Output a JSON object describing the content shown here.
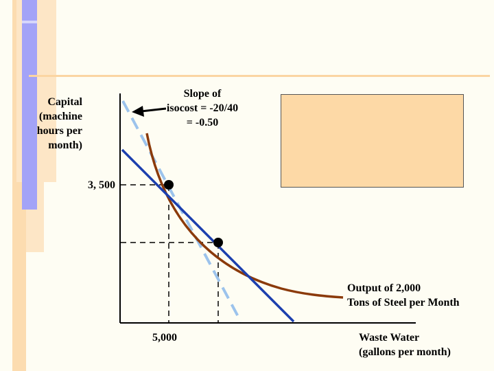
{
  "slide": {
    "y_axis_label": [
      "Capital",
      "(machine",
      "hours per",
      "month)"
    ],
    "x_axis_label": [
      "Waste Water",
      "(gallons per month)"
    ],
    "slope_note": [
      "Slope of",
      "isocost = -20/40",
      "= -0.50"
    ],
    "isoquant_label": [
      "Output of 2,000",
      "Tons of Steel per Month"
    ],
    "y_tick": "3, 500",
    "x_tick": "5,000",
    "callout_text": ""
  },
  "colors": {
    "isoquant": "#8b3a0a",
    "isocost_line": "#1c3fae",
    "old_isocost_line": "#9cc3ec",
    "callout_fill": "#fdd9a6",
    "accent_orange": "#fcd8a8",
    "accent_blue": "#9c9cf6"
  }
}
